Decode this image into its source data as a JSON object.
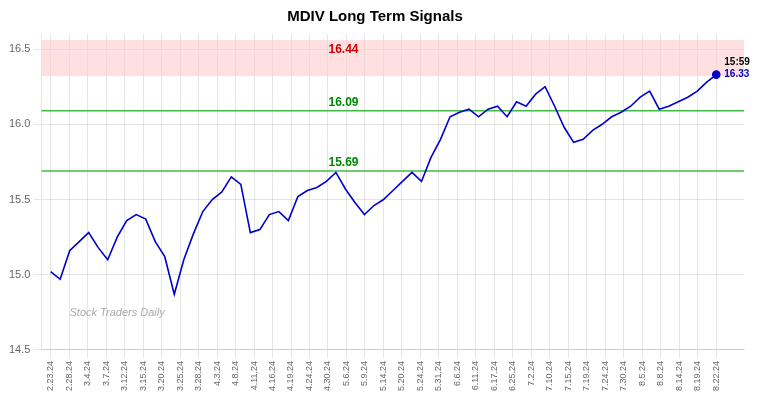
{
  "chart_data": {
    "type": "line",
    "title": "MDIV Long Term Signals",
    "color": "#0000cc",
    "x": [
      0,
      0.514286,
      1.028571,
      1.542857,
      2.057143,
      2.571429,
      3.085714,
      3.6,
      4.114286,
      4.628571,
      5.142857,
      5.657143,
      6.171429,
      6.685714,
      7.2,
      7.714286,
      8.228571,
      8.742857,
      9.257143,
      9.771429,
      10.285714,
      10.8,
      11.314286,
      11.828571,
      12.342857,
      12.857143,
      13.371429,
      13.885714,
      14.4,
      14.914286,
      15.428571,
      15.942857,
      16.457143,
      16.971429,
      17.485714,
      18,
      18.514286,
      19.028571,
      19.542857,
      20.057143,
      20.571429,
      21.085714,
      21.6,
      22.114286,
      22.628571,
      23.142857,
      23.657143,
      24.171429,
      24.685714,
      25.2,
      25.714286,
      26.228571,
      26.742857,
      27.257143,
      27.771429,
      28.285714,
      28.8,
      29.314286,
      29.828571,
      30.342857,
      30.857143,
      31.371429,
      31.885714,
      32.4,
      32.914286,
      33.428571,
      33.942857,
      34.457143,
      34.971429,
      35.485714,
      36
    ],
    "values": [
      15.02,
      14.97,
      15.16,
      15.22,
      15.28,
      15.18,
      15.1,
      15.25,
      15.36,
      15.4,
      15.37,
      15.22,
      15.12,
      14.87,
      15.1,
      15.27,
      15.42,
      15.5,
      15.55,
      15.65,
      15.6,
      15.28,
      15.3,
      15.4,
      15.42,
      15.36,
      15.52,
      15.56,
      15.58,
      15.62,
      15.68,
      15.57,
      15.48,
      15.4,
      15.46,
      15.5,
      15.56,
      15.62,
      15.68,
      15.62,
      15.78,
      15.9,
      16.05,
      16.08,
      16.1,
      16.05,
      16.1,
      16.12,
      16.05,
      16.15,
      16.12,
      16.2,
      16.25,
      16.12,
      15.98,
      15.88,
      15.9,
      15.96,
      16.0,
      16.05,
      16.08,
      16.12,
      16.18,
      16.22,
      16.1,
      16.12,
      16.15,
      16.18,
      16.22,
      16.28,
      16.33
    ],
    "xlim": [
      -0.5,
      37.5
    ],
    "xticks": [
      {
        "value": 0,
        "label": "2.23.24"
      },
      {
        "value": 1,
        "label": "2.28.24"
      },
      {
        "value": 2,
        "label": "3.4.24"
      },
      {
        "value": 3,
        "label": "3.7.24"
      },
      {
        "value": 4,
        "label": "3.12.24"
      },
      {
        "value": 5,
        "label": "3.15.24"
      },
      {
        "value": 6,
        "label": "3.20.24"
      },
      {
        "value": 7,
        "label": "3.25.24"
      },
      {
        "value": 8,
        "label": "3.28.24"
      },
      {
        "value": 9,
        "label": "4.3.24"
      },
      {
        "value": 10,
        "label": "4.8.24"
      },
      {
        "value": 11,
        "label": "4.11.24"
      },
      {
        "value": 12,
        "label": "4.16.24"
      },
      {
        "value": 13,
        "label": "4.19.24"
      },
      {
        "value": 14,
        "label": "4.24.24"
      },
      {
        "value": 15,
        "label": "4.30.24"
      },
      {
        "value": 16,
        "label": "5.6.24"
      },
      {
        "value": 17,
        "label": "5.9.24"
      },
      {
        "value": 18,
        "label": "5.14.24"
      },
      {
        "value": 19,
        "label": "5.20.24"
      },
      {
        "value": 20,
        "label": "5.24.24"
      },
      {
        "value": 21,
        "label": "5.31.24"
      },
      {
        "value": 22,
        "label": "6.6.24"
      },
      {
        "value": 23,
        "label": "6.11.24"
      },
      {
        "value": 24,
        "label": "6.17.24"
      },
      {
        "value": 25,
        "label": "6.25.24"
      },
      {
        "value": 26,
        "label": "7.2.24"
      },
      {
        "value": 27,
        "label": "7.10.24"
      },
      {
        "value": 28,
        "label": "7.15.24"
      },
      {
        "value": 29,
        "label": "7.19.24"
      },
      {
        "value": 30,
        "label": "7.24.24"
      },
      {
        "value": 31,
        "label": "7.30.24"
      },
      {
        "value": 32,
        "label": "8.5.24"
      },
      {
        "value": 33,
        "label": "8.8.24"
      },
      {
        "value": 34,
        "label": "8.14.24"
      },
      {
        "value": 35,
        "label": "8.19.24"
      },
      {
        "value": 36,
        "label": "8.22.24"
      }
    ],
    "ylim": [
      14.5,
      16.6
    ],
    "yticks": [
      14.5,
      {
        "value": 15,
        "label": "15.0"
      },
      15.5,
      {
        "value": 16,
        "label": "16.0"
      },
      16.5
    ],
    "grid": true,
    "bands": [
      {
        "from": 16.32,
        "to": 16.56,
        "color": "#ffcccc"
      }
    ],
    "hlines": [
      {
        "y": 16.09,
        "color": "#44bb44"
      },
      {
        "y": 15.69,
        "color": "#44bb44"
      }
    ],
    "annotations": [
      {
        "text": "16.44",
        "x": 15.84,
        "y": 16.44,
        "color": "#cc0000"
      },
      {
        "text": "16.09",
        "x": 15.84,
        "y": 16.09,
        "color": "#008800"
      },
      {
        "text": "15.69",
        "x": 15.84,
        "y": 15.69,
        "color": "#008800"
      }
    ],
    "last_point": {
      "time": "15:59",
      "price": 16.33
    },
    "watermark": "Stock Traders Daily"
  }
}
